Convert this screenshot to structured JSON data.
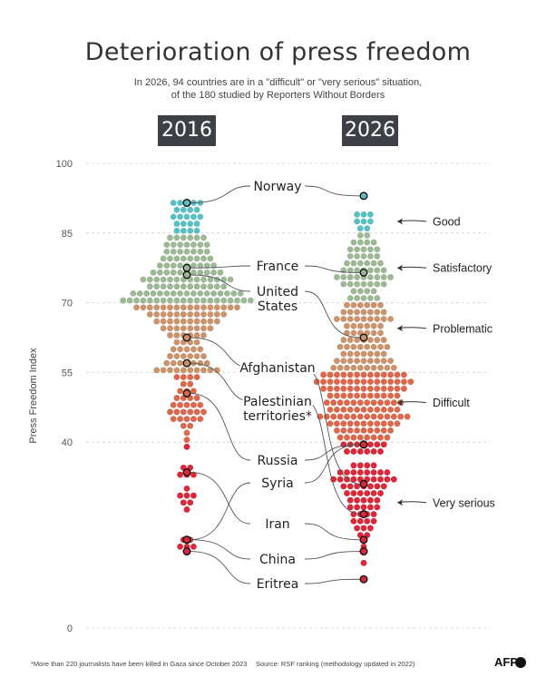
{
  "title": "Deterioration of press freedom",
  "subtitle": {
    "line1": "In 2026, 94 countries are in a \"difficult\" or \"very serious\" situation,",
    "line2": "of the 180 studied by Reporters Without Borders"
  },
  "footnote": "*More than 220 journalists have been killed in Gaza since October 2023",
  "source": "Source: RSF ranking (methodology updated in 2022)",
  "logo": "AFP",
  "chart_data": {
    "type": "scatter",
    "style": "beeswarm",
    "columns": [
      "2016",
      "2026"
    ],
    "ylabel": "Press Freedom Index",
    "ylim": [
      0,
      100
    ],
    "yticks": [
      0,
      40,
      55,
      70,
      85,
      100
    ],
    "grid": true,
    "colors": {
      "good": "#5bbfc2",
      "satisfactory": "#9db896",
      "problematic": "#c9936d",
      "difficult": "#d9684d",
      "very_serious": "#d9283a",
      "connector": "#555555",
      "grid": "#d8d8d8"
    },
    "categories": [
      {
        "key": "good",
        "label": "Good",
        "level": 87.5
      },
      {
        "key": "satisfactory",
        "label": "Satisfactory",
        "level": 77.5
      },
      {
        "key": "problematic",
        "label": "Problematic",
        "level": 64.5
      },
      {
        "key": "difficult",
        "label": "Difficult",
        "level": 48.5
      },
      {
        "key": "very_serious",
        "label": "Very serious",
        "level": 27
      }
    ],
    "distribution": {
      "2016": [
        {
          "value": 91.5,
          "count": 5
        },
        {
          "value": 90,
          "count": 4
        },
        {
          "value": 88.5,
          "count": 5
        },
        {
          "value": 87,
          "count": 4
        },
        {
          "value": 85.5,
          "count": 4
        },
        {
          "value": 84,
          "count": 6
        },
        {
          "value": 82.5,
          "count": 7
        },
        {
          "value": 81,
          "count": 7
        },
        {
          "value": 79.5,
          "count": 8
        },
        {
          "value": 78,
          "count": 9
        },
        {
          "value": 76.5,
          "count": 11
        },
        {
          "value": 75,
          "count": 14
        },
        {
          "value": 73.5,
          "count": 12
        },
        {
          "value": 72,
          "count": 17
        },
        {
          "value": 70.5,
          "count": 20
        },
        {
          "value": 69,
          "count": 16
        },
        {
          "value": 67.5,
          "count": 12
        },
        {
          "value": 66,
          "count": 10
        },
        {
          "value": 64.5,
          "count": 8
        },
        {
          "value": 63,
          "count": 6
        },
        {
          "value": 61.5,
          "count": 4
        },
        {
          "value": 60,
          "count": 5
        },
        {
          "value": 58.5,
          "count": 6
        },
        {
          "value": 57,
          "count": 7
        },
        {
          "value": 55.5,
          "count": 10
        },
        {
          "value": 54,
          "count": 4
        },
        {
          "value": 52.5,
          "count": 2
        },
        {
          "value": 51,
          "count": 3
        },
        {
          "value": 49.5,
          "count": 4
        },
        {
          "value": 48,
          "count": 5
        },
        {
          "value": 46.5,
          "count": 6
        },
        {
          "value": 45,
          "count": 5
        },
        {
          "value": 43.5,
          "count": 2
        },
        {
          "value": 42,
          "count": 1
        },
        {
          "value": 40.5,
          "count": 1
        },
        {
          "value": 39,
          "count": 1
        },
        {
          "value": 34.5,
          "count": 2
        },
        {
          "value": 33,
          "count": 3
        },
        {
          "value": 30,
          "count": 1
        },
        {
          "value": 28.5,
          "count": 3
        },
        {
          "value": 27,
          "count": 2
        },
        {
          "value": 25.5,
          "count": 1
        },
        {
          "value": 19,
          "count": 2
        },
        {
          "value": 17.5,
          "count": 3
        }
      ],
      "2026": [
        {
          "value": 93,
          "count": 1
        },
        {
          "value": 89,
          "count": 3
        },
        {
          "value": 87.5,
          "count": 3
        },
        {
          "value": 86,
          "count": 2
        },
        {
          "value": 84.5,
          "count": 2
        },
        {
          "value": 83,
          "count": 4
        },
        {
          "value": 81.5,
          "count": 5
        },
        {
          "value": 80,
          "count": 5
        },
        {
          "value": 78.5,
          "count": 6
        },
        {
          "value": 77,
          "count": 7
        },
        {
          "value": 75.5,
          "count": 9
        },
        {
          "value": 74,
          "count": 7
        },
        {
          "value": 72.5,
          "count": 4
        },
        {
          "value": 71,
          "count": 5
        },
        {
          "value": 69.5,
          "count": 6
        },
        {
          "value": 68,
          "count": 7
        },
        {
          "value": 66.5,
          "count": 9
        },
        {
          "value": 65,
          "count": 6
        },
        {
          "value": 63.5,
          "count": 6
        },
        {
          "value": 62,
          "count": 7
        },
        {
          "value": 60.5,
          "count": 8
        },
        {
          "value": 59,
          "count": 7
        },
        {
          "value": 57.5,
          "count": 9
        },
        {
          "value": 56,
          "count": 10
        },
        {
          "value": 54.5,
          "count": 13
        },
        {
          "value": 53,
          "count": 15
        },
        {
          "value": 51.5,
          "count": 13
        },
        {
          "value": 50,
          "count": 11
        },
        {
          "value": 48.5,
          "count": 12
        },
        {
          "value": 47,
          "count": 11
        },
        {
          "value": 45.5,
          "count": 14
        },
        {
          "value": 44,
          "count": 11
        },
        {
          "value": 42.5,
          "count": 9
        },
        {
          "value": 41,
          "count": 8
        },
        {
          "value": 39.5,
          "count": 7
        },
        {
          "value": 38,
          "count": 6
        },
        {
          "value": 35,
          "count": 4
        },
        {
          "value": 33.5,
          "count": 8
        },
        {
          "value": 32,
          "count": 10
        },
        {
          "value": 30.5,
          "count": 7
        },
        {
          "value": 29,
          "count": 6
        },
        {
          "value": 27.5,
          "count": 5
        },
        {
          "value": 26,
          "count": 5
        },
        {
          "value": 24.5,
          "count": 4
        },
        {
          "value": 23,
          "count": 4
        },
        {
          "value": 21.5,
          "count": 3
        },
        {
          "value": 20,
          "count": 2
        },
        {
          "value": 17.5,
          "count": 1
        },
        {
          "value": 14,
          "count": 1
        },
        {
          "value": 10.5,
          "count": 1
        }
      ]
    },
    "highlights": [
      {
        "country": "Norway",
        "v2016": 91.5,
        "v2026": 93
      },
      {
        "country": "France",
        "v2016": 77.5,
        "v2026": 76.5
      },
      {
        "country": "United States",
        "lines": [
          "United",
          "States"
        ],
        "v2016": 76,
        "v2026": 62.5
      },
      {
        "country": "Afghanistan",
        "v2016": 62.5,
        "v2026": 31
      },
      {
        "country": "Palestinian territories*",
        "lines": [
          "Palestinian",
          "territories*"
        ],
        "v2016": 57,
        "v2026": 24.5
      },
      {
        "country": "Russia",
        "v2016": 50.5,
        "v2026": 39.5
      },
      {
        "country": "Syria",
        "v2016": 19,
        "v2026": 39.5
      },
      {
        "country": "Iran",
        "v2016": 33.5,
        "v2026": 19
      },
      {
        "country": "China",
        "v2016": 19,
        "v2026": 16.5
      },
      {
        "country": "Eritrea",
        "v2016": 16.5,
        "v2026": 10.5
      }
    ]
  }
}
